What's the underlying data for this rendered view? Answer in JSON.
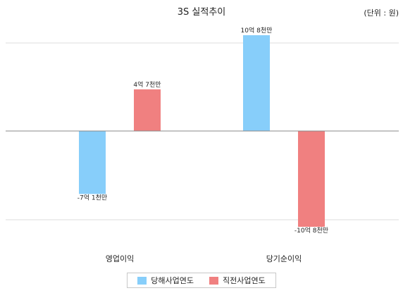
{
  "chart_data": {
    "type": "bar",
    "title": "3S 실적추이",
    "unit_note": "(단위 : 원)",
    "categories": [
      "영업이익",
      "당기순이익"
    ],
    "series": [
      {
        "name": "당해사업연도",
        "color": "#87cefa",
        "values": [
          -710000000,
          1080000000
        ],
        "labels": [
          "-7억 1천만",
          "10억 8천만"
        ]
      },
      {
        "name": "직전사업연도",
        "color": "#f08080",
        "values": [
          470000000,
          -1080000000
        ],
        "labels": [
          "4억 7천만",
          "-10억 8천만"
        ]
      }
    ],
    "ylim": [
      -1100000000,
      1100000000
    ],
    "grid": true,
    "legend_position": "bottom"
  }
}
